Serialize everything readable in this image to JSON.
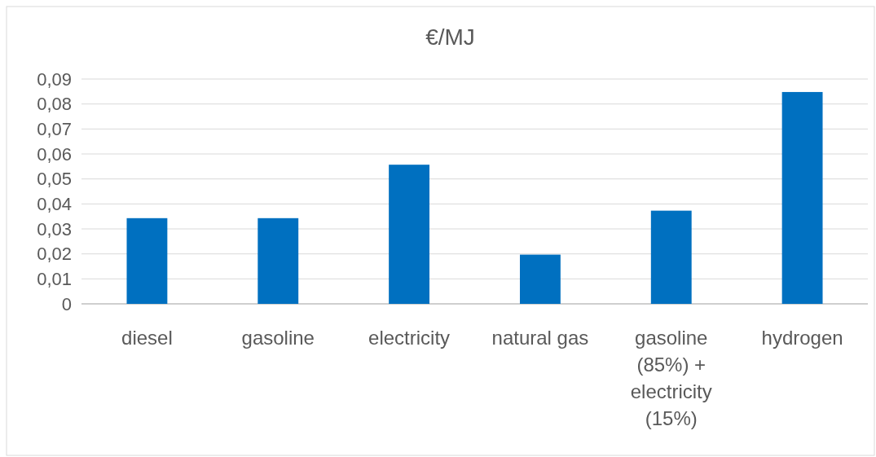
{
  "chart_data": {
    "type": "bar",
    "title": "€/MJ",
    "categories": [
      "diesel",
      "gasoline",
      "electricity",
      "natural gas",
      "gasoline (85%) + electricity (15%)",
      "hydrogen"
    ],
    "values": [
      0.0343,
      0.0343,
      0.0557,
      0.0197,
      0.0373,
      0.0848
    ],
    "color": "#0070c0",
    "ylim": [
      0,
      0.09
    ],
    "yticks": [
      {
        "value": 0,
        "label": "0"
      },
      {
        "value": 0.01,
        "label": "0,01"
      },
      {
        "value": 0.02,
        "label": "0,02"
      },
      {
        "value": 0.03,
        "label": "0,03"
      },
      {
        "value": 0.04,
        "label": "0,04"
      },
      {
        "value": 0.05,
        "label": "0,05"
      },
      {
        "value": 0.06,
        "label": "0,06"
      },
      {
        "value": 0.07,
        "label": "0,07"
      },
      {
        "value": 0.08,
        "label": "0,08"
      },
      {
        "value": 0.09,
        "label": "0,09"
      }
    ],
    "grid": "y"
  }
}
